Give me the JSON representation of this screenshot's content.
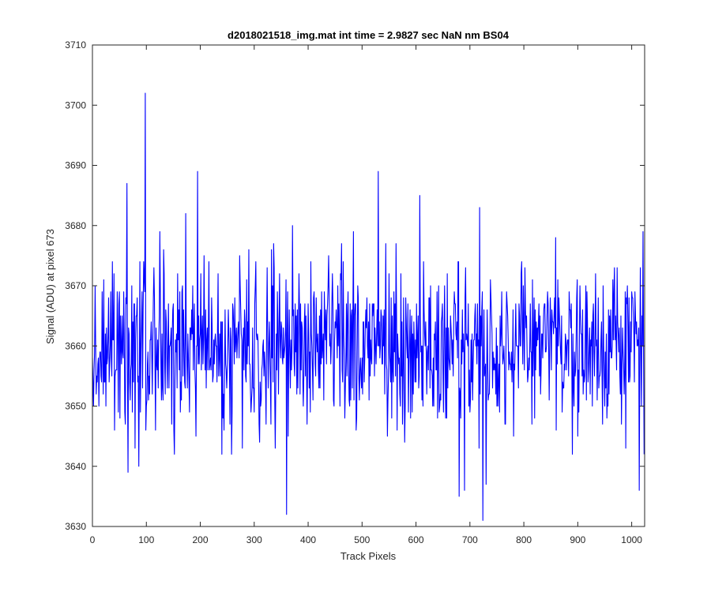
{
  "chart_data": {
    "type": "line",
    "title": "d2018021518_img.mat int time = 2.9827 sec  NaN nm BS04",
    "xlabel": "Track Pixels",
    "ylabel": "Signal (ADU) at pixel 673",
    "xlim": [
      0,
      1024
    ],
    "ylim": [
      3630,
      3710
    ],
    "xticks": [
      "0",
      "100",
      "200",
      "300",
      "400",
      "500",
      "600",
      "700",
      "800",
      "900",
      "1000"
    ],
    "yticks": [
      "3630",
      "3640",
      "3650",
      "3660",
      "3670",
      "3680",
      "3690",
      "3700",
      "3710"
    ],
    "grid": false,
    "series": [
      {
        "color": "#0000ff",
        "noise": {
          "n": 1024,
          "mean": 3660,
          "sd": 6.5,
          "min": 3633,
          "max": 3694
        },
        "points": [
          [
            0,
            3658
          ],
          [
            5,
            3670
          ],
          [
            10,
            3657
          ],
          [
            20,
            3652
          ],
          [
            40,
            3672
          ],
          [
            62,
            3668
          ],
          [
            64,
            3687
          ],
          [
            66,
            3639
          ],
          [
            68,
            3662
          ],
          [
            80,
            3661
          ],
          [
            86,
            3640
          ],
          [
            94,
            3666
          ],
          [
            96,
            3671
          ],
          [
            98,
            3702
          ],
          [
            100,
            3650
          ],
          [
            125,
            3679
          ],
          [
            152,
            3642
          ],
          [
            173,
            3682
          ],
          [
            195,
            3689
          ],
          [
            240,
            3642
          ],
          [
            278,
            3643
          ],
          [
            334,
            3670
          ],
          [
            360,
            3632
          ],
          [
            371,
            3680
          ],
          [
            484,
            3679
          ],
          [
            530,
            3689
          ],
          [
            563,
            3677
          ],
          [
            565,
            3646
          ],
          [
            596,
            3664
          ],
          [
            607,
            3685
          ],
          [
            680,
            3635
          ],
          [
            690,
            3636
          ],
          [
            718,
            3683
          ],
          [
            724,
            3631
          ],
          [
            730,
            3637
          ],
          [
            1010,
            3660
          ],
          [
            1014,
            3636
          ],
          [
            1018,
            3650
          ],
          [
            1021,
            3679
          ],
          [
            1023,
            3642
          ]
        ]
      }
    ]
  }
}
